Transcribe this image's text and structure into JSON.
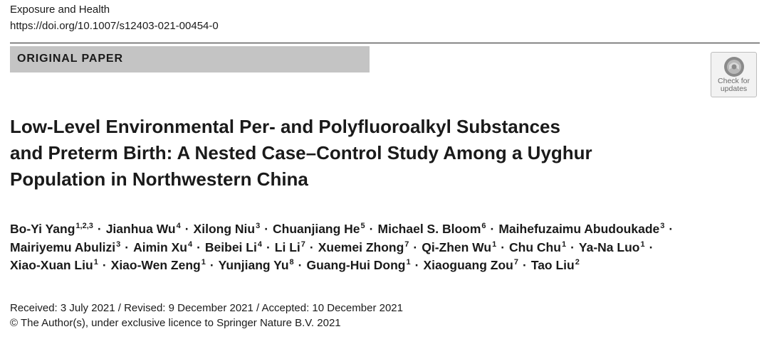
{
  "journal": "Exposure and Health",
  "doi": "https://doi.org/10.1007/s12403-021-00454-0",
  "article_type": "ORIGINAL PAPER",
  "check_for_updates": [
    "Check for",
    "updates"
  ],
  "title_lines": [
    "Low-Level Environmental Per- and Polyfluoroalkyl Substances",
    "and Preterm Birth: A Nested Case–Control Study Among a Uyghur",
    "Population in Northwestern China"
  ],
  "author_separator": "·",
  "author_lines": [
    [
      {
        "name": "Bo-Yi Yang",
        "aff": "1,2,3"
      },
      {
        "name": "Jianhua Wu",
        "aff": "4"
      },
      {
        "name": "Xilong Niu",
        "aff": "3"
      },
      {
        "name": "Chuanjiang He",
        "aff": "5"
      },
      {
        "name": "Michael S. Bloom",
        "aff": "6"
      },
      {
        "name": "Maihefuzaimu Abudoukade",
        "aff": "3"
      }
    ],
    [
      {
        "name": "Mairiyemu Abulizi",
        "aff": "3"
      },
      {
        "name": "Aimin Xu",
        "aff": "4"
      },
      {
        "name": "Beibei Li",
        "aff": "4"
      },
      {
        "name": "Li Li",
        "aff": "7"
      },
      {
        "name": "Xuemei Zhong",
        "aff": "7"
      },
      {
        "name": "Qi-Zhen Wu",
        "aff": "1"
      },
      {
        "name": "Chu Chu",
        "aff": "1"
      },
      {
        "name": "Ya-Na Luo",
        "aff": "1"
      }
    ],
    [
      {
        "name": "Xiao-Xuan Liu",
        "aff": "1"
      },
      {
        "name": "Xiao-Wen Zeng",
        "aff": "1"
      },
      {
        "name": "Yunjiang Yu",
        "aff": "8"
      },
      {
        "name": "Guang-Hui Dong",
        "aff": "1"
      },
      {
        "name": "Xiaoguang Zou",
        "aff": "7"
      },
      {
        "name": "Tao Liu",
        "aff": "2"
      }
    ]
  ],
  "dates": "Received: 3 July 2021 / Revised: 9 December 2021 / Accepted: 10 December 2021",
  "copyright": "© The Author(s), under exclusive licence to Springer Nature B.V. 2021",
  "colors": {
    "type_bar": "#c4c4c4",
    "text": "#1a1a1a"
  }
}
